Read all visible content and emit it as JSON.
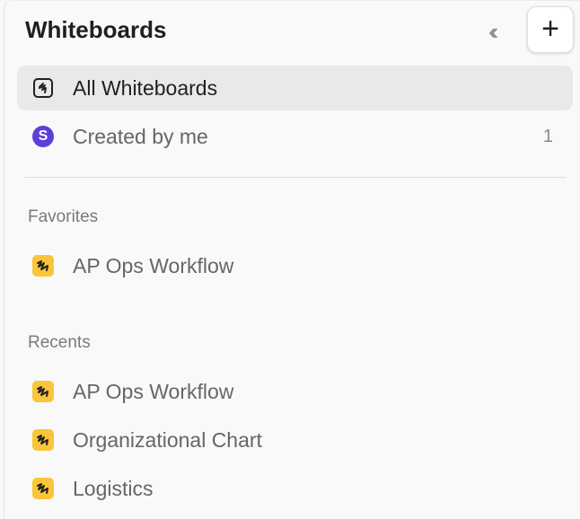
{
  "header": {
    "title": "Whiteboards",
    "collapse_icon": "double-chevron-left-icon",
    "add_label": "+"
  },
  "nav": [
    {
      "label": "All Whiteboards",
      "icon": "whiteboard-icon",
      "active": true
    },
    {
      "label": "Created by me",
      "icon": "avatar",
      "avatar_letter": "S",
      "count": "1"
    }
  ],
  "favorites": {
    "heading": "Favorites",
    "items": [
      {
        "label": "AP Ops Workflow",
        "icon": "whiteboard-yellow-icon"
      }
    ]
  },
  "recents": {
    "heading": "Recents",
    "items": [
      {
        "label": "AP Ops Workflow",
        "icon": "whiteboard-yellow-icon"
      },
      {
        "label": "Organizational Chart",
        "icon": "whiteboard-yellow-icon"
      },
      {
        "label": "Logistics",
        "icon": "whiteboard-yellow-icon"
      }
    ]
  },
  "colors": {
    "avatar": "#5b3fd6",
    "whiteboard_icon": "#fbc53a",
    "active_bg": "#e9e9e9"
  }
}
